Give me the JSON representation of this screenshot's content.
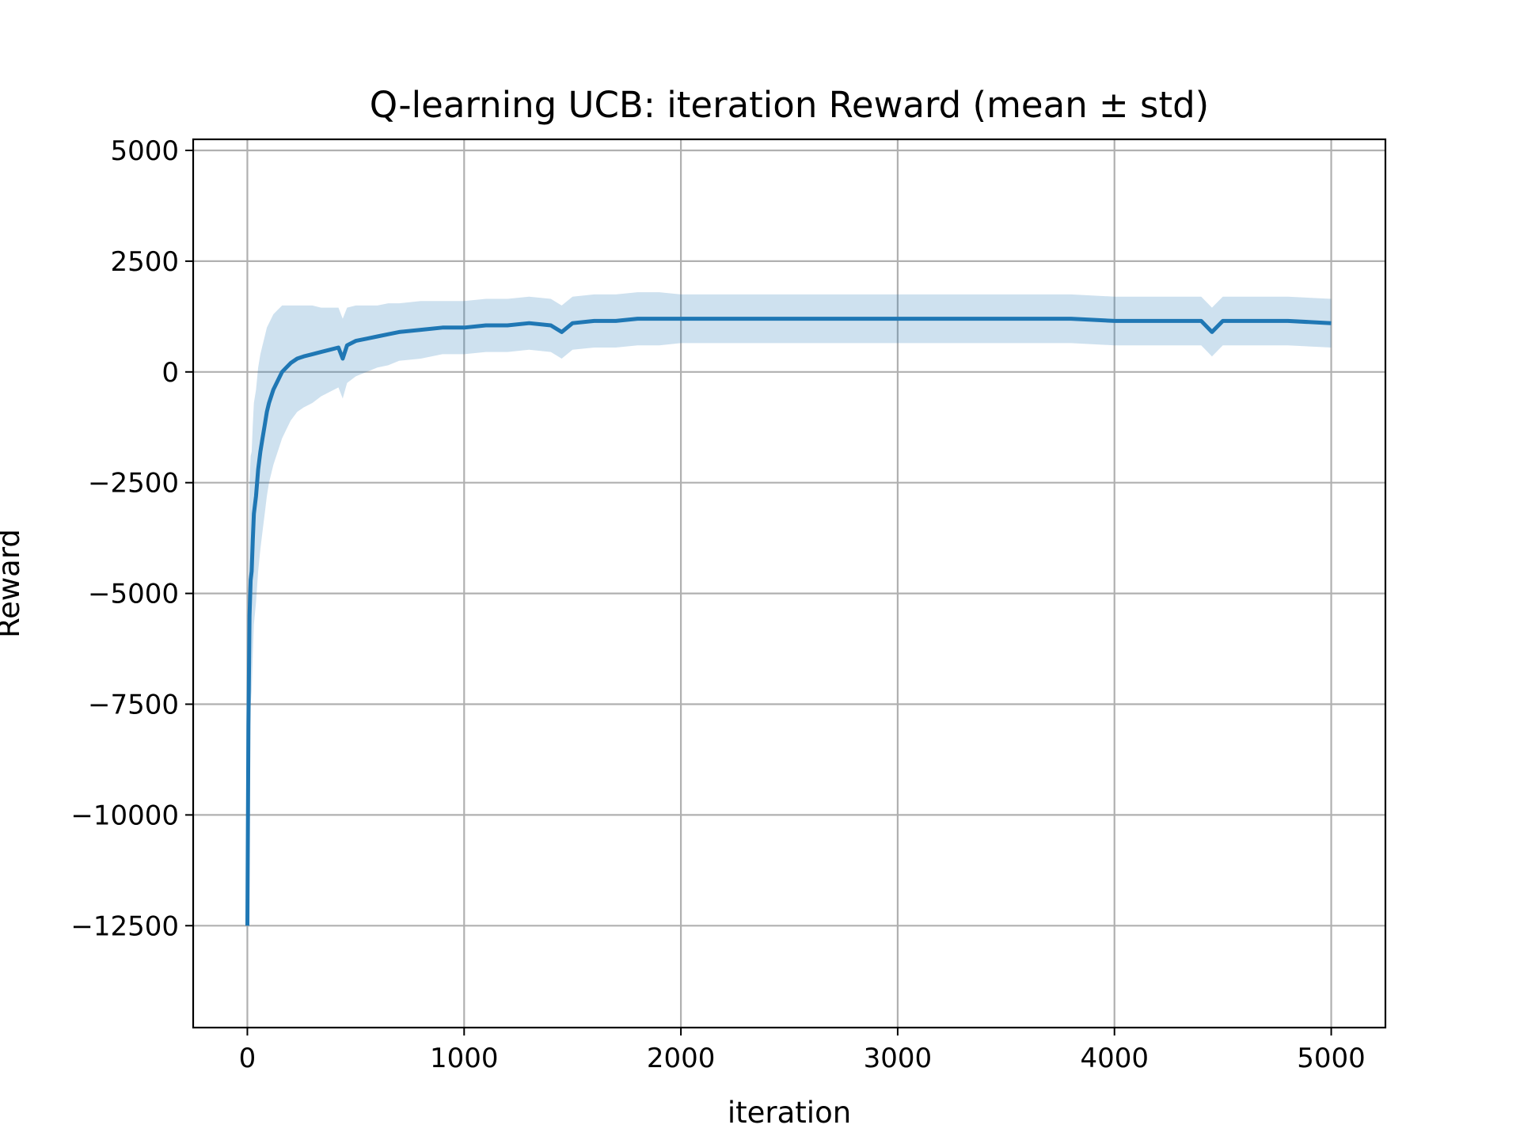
{
  "chart_data": {
    "type": "line",
    "title": "Q-learning UCB: iteration Reward (mean ± std)",
    "xlabel": "iteration",
    "ylabel": "Reward",
    "xlim": [
      -250,
      5250
    ],
    "ylim": [
      -14800,
      5250
    ],
    "xticks": [
      0,
      1000,
      2000,
      3000,
      4000,
      5000
    ],
    "yticks": [
      5000,
      2500,
      0,
      -2500,
      -5000,
      -7500,
      -10000,
      -12500
    ],
    "xtick_labels": [
      "0",
      "1000",
      "2000",
      "3000",
      "4000",
      "5000"
    ],
    "ytick_labels": [
      "5000",
      "2500",
      "0",
      "−2500",
      "−5000",
      "−7500",
      "−10000",
      "−12500"
    ],
    "grid": true,
    "legend": "none",
    "series": [
      {
        "color": "#1f77b4",
        "band_color": "#1f77b4",
        "x": [
          0,
          5,
          10,
          15,
          20,
          25,
          30,
          40,
          50,
          60,
          70,
          80,
          90,
          100,
          120,
          140,
          160,
          180,
          200,
          230,
          260,
          300,
          340,
          380,
          420,
          440,
          460,
          500,
          550,
          600,
          650,
          700,
          800,
          900,
          1000,
          1100,
          1200,
          1300,
          1400,
          1450,
          1500,
          1600,
          1700,
          1800,
          1900,
          2000,
          2200,
          2400,
          2600,
          2800,
          3000,
          3200,
          3400,
          3600,
          3800,
          4000,
          4200,
          4400,
          4450,
          4500,
          4600,
          4800,
          5000
        ],
        "mean": [
          -12500,
          -8000,
          -5500,
          -4700,
          -4500,
          -3800,
          -3200,
          -2800,
          -2200,
          -1800,
          -1500,
          -1200,
          -900,
          -700,
          -400,
          -200,
          0,
          100,
          200,
          300,
          350,
          400,
          450,
          500,
          550,
          300,
          600,
          700,
          750,
          800,
          850,
          900,
          950,
          1000,
          1000,
          1050,
          1050,
          1100,
          1050,
          900,
          1100,
          1150,
          1150,
          1200,
          1200,
          1200,
          1200,
          1200,
          1200,
          1200,
          1200,
          1200,
          1200,
          1200,
          1200,
          1150,
          1150,
          1150,
          900,
          1150,
          1150,
          1150,
          1100
        ],
        "std": [
          400,
          3000,
          3000,
          2800,
          2700,
          2600,
          2500,
          2400,
          2300,
          2200,
          2100,
          2000,
          1900,
          1800,
          1700,
          1600,
          1500,
          1400,
          1300,
          1200,
          1150,
          1100,
          1000,
          950,
          900,
          900,
          850,
          800,
          750,
          700,
          700,
          650,
          650,
          600,
          600,
          600,
          600,
          600,
          600,
          600,
          600,
          600,
          600,
          600,
          600,
          550,
          550,
          550,
          550,
          550,
          550,
          550,
          550,
          550,
          550,
          550,
          550,
          550,
          550,
          550,
          550,
          550,
          550
        ]
      }
    ]
  }
}
